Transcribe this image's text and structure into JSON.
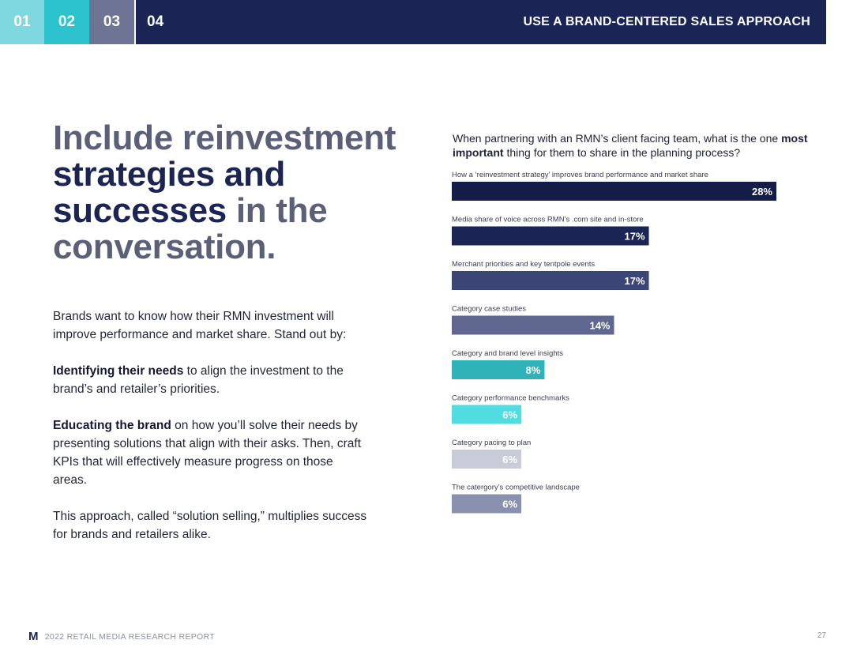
{
  "header": {
    "tabs": [
      {
        "label": "01",
        "color": "#7fd8e0"
      },
      {
        "label": "02",
        "color": "#2cc3cf"
      },
      {
        "label": "03",
        "color": "#6e7594"
      },
      {
        "label": "04",
        "color": "#1a2556"
      }
    ],
    "section_title": "USE A BRAND-CENTERED SALES APPROACH"
  },
  "headline": {
    "part1": "Include reinvestment ",
    "part2": "strategies and successes",
    "part3": " in the conversation."
  },
  "body": {
    "p1": "Brands want to know how their RMN investment will improve performance and market share. Stand out by:",
    "p2_bold": "Identifying their needs",
    "p2_rest": " to align the investment to the brand’s and retailer’s priorities.",
    "p3_bold": "Educating the brand",
    "p3_rest": " on how you’ll solve their needs by presenting solutions that align with their asks. Then, craft KPIs that will effectively measure progress on those areas.",
    "p4": "This approach, called “solution selling,” multiplies success for brands and retailers alike."
  },
  "question": {
    "pre": "When partnering with an RMN’s client facing team, what is the one ",
    "bold": "most important",
    "post": " thing for them to share in the planning process?"
  },
  "chart_data": {
    "type": "bar",
    "orientation": "horizontal",
    "categories": [
      "How a ‘reinvestment strategy’ improves brand performance and market share",
      "Media share of voice across RMN’s .com site and in-store",
      "Merchant priorities and key tentpole events",
      "Category case studies",
      "Category and brand level insights",
      "Category performance benchmarks",
      "Category pacing to plan",
      "The catergory’s competitive landscape"
    ],
    "values": [
      28,
      17,
      17,
      14,
      8,
      6,
      6,
      6
    ],
    "value_labels": [
      "28%",
      "17%",
      "17%",
      "14%",
      "8%",
      "6%",
      "6%",
      "6%"
    ],
    "colors": [
      "#141c48",
      "#1a2556",
      "#3b4676",
      "#5f6790",
      "#2fb3b9",
      "#4fdde2",
      "#c8ccd8",
      "#8a91ae"
    ],
    "unit": "%"
  },
  "footer": {
    "logo": "M",
    "report": "2022 RETAIL MEDIA RESEARCH REPORT",
    "page": "27"
  }
}
